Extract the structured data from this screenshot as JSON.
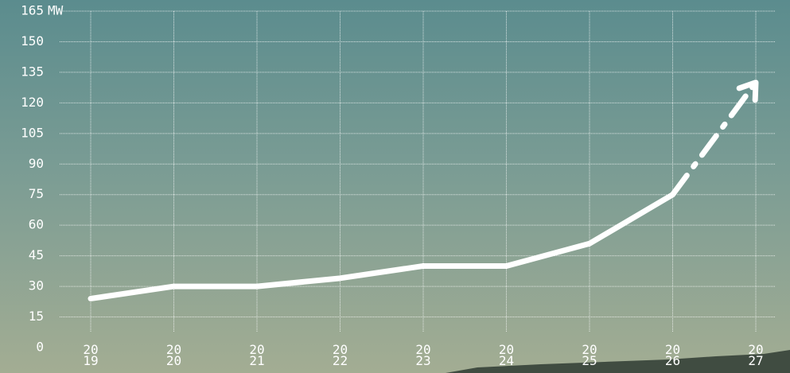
{
  "chart_data": {
    "type": "line",
    "y_unit": "MW",
    "categories": [
      "2019",
      "2020",
      "2021",
      "2022",
      "2023",
      "2024",
      "2025",
      "2026",
      "2027"
    ],
    "series": [
      {
        "color": "#ffffff",
        "style": "solid",
        "values": [
          24,
          30,
          30,
          34,
          40,
          40,
          51,
          75,
          null
        ]
      },
      {
        "color": "#ffffff",
        "style": "dashed",
        "values": [
          null,
          null,
          null,
          null,
          null,
          null,
          null,
          75,
          130
        ]
      }
    ],
    "ylim": [
      0,
      165
    ],
    "yticks": [
      0,
      15,
      30,
      45,
      60,
      75,
      90,
      105,
      120,
      135,
      150,
      165
    ],
    "grid": true
  }
}
